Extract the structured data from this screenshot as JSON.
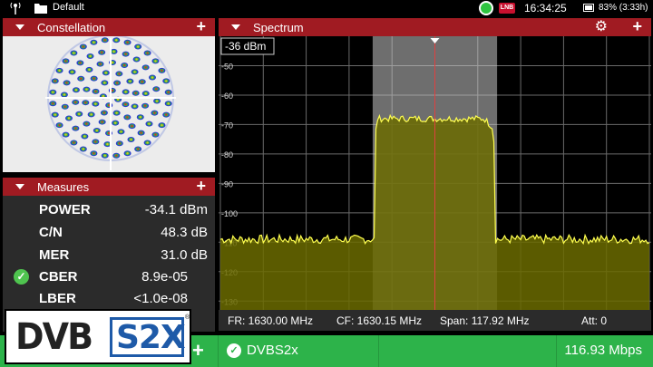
{
  "status_bar": {
    "folder": "Default",
    "badge": "LNB",
    "time": "16:34:25",
    "battery": "83% (3:33h)",
    "icons": [
      "antenna-icon",
      "folder-icon",
      "record-indicator-icon",
      "battery-icon"
    ]
  },
  "constellation": {
    "title": "Constellation",
    "rings": [
      {
        "radius_rel": 1.0,
        "points": 32
      },
      {
        "radius_rel": 0.8,
        "points": 24
      },
      {
        "radius_rel": 0.61,
        "points": 18
      },
      {
        "radius_rel": 0.44,
        "points": 12
      },
      {
        "radius_rel": 0.28,
        "points": 8
      },
      {
        "radius_rel": 0.13,
        "points": 4
      }
    ]
  },
  "measures": {
    "title": "Measures",
    "rows": [
      {
        "name": "POWER",
        "value": "-34.1 dBm",
        "check": false
      },
      {
        "name": "C/N",
        "value": "48.3 dB",
        "check": false
      },
      {
        "name": "MER",
        "value": "31.0 dB",
        "check": false
      },
      {
        "name": "CBER",
        "value": "8.9e-05",
        "check": true
      },
      {
        "name": "LBER",
        "value": "<1.0e-08",
        "check": false
      }
    ]
  },
  "spectrum": {
    "title": "Spectrum",
    "ref_level": "-36 dBm",
    "footer": {
      "fr": "FR: 1630.00 MHz",
      "cf": "CF: 1630.15 MHz",
      "span": "Span: 117.92 MHz",
      "att": "Att: 0"
    },
    "chart_data": {
      "type": "line",
      "yticks": [
        "-50",
        "-60",
        "-70",
        "-80",
        "-90",
        "-100",
        "-110",
        "-120",
        "-130"
      ],
      "ylim": [
        -133,
        -40
      ],
      "noise_floor": -109,
      "signal_level": -68,
      "signal_band_rel": [
        0.355,
        0.645
      ],
      "colors": {
        "trace": "#ffff50",
        "fill": "#6b6b00",
        "marker": "#e04040",
        "band": "#c8c8c8"
      }
    }
  },
  "bottom_bar": {
    "modulation": "DVBS2x",
    "bitrate": "116.93 Mbps"
  },
  "logo": {
    "text_left": "DVB",
    "text_right": "S2X",
    "reg": "®"
  }
}
